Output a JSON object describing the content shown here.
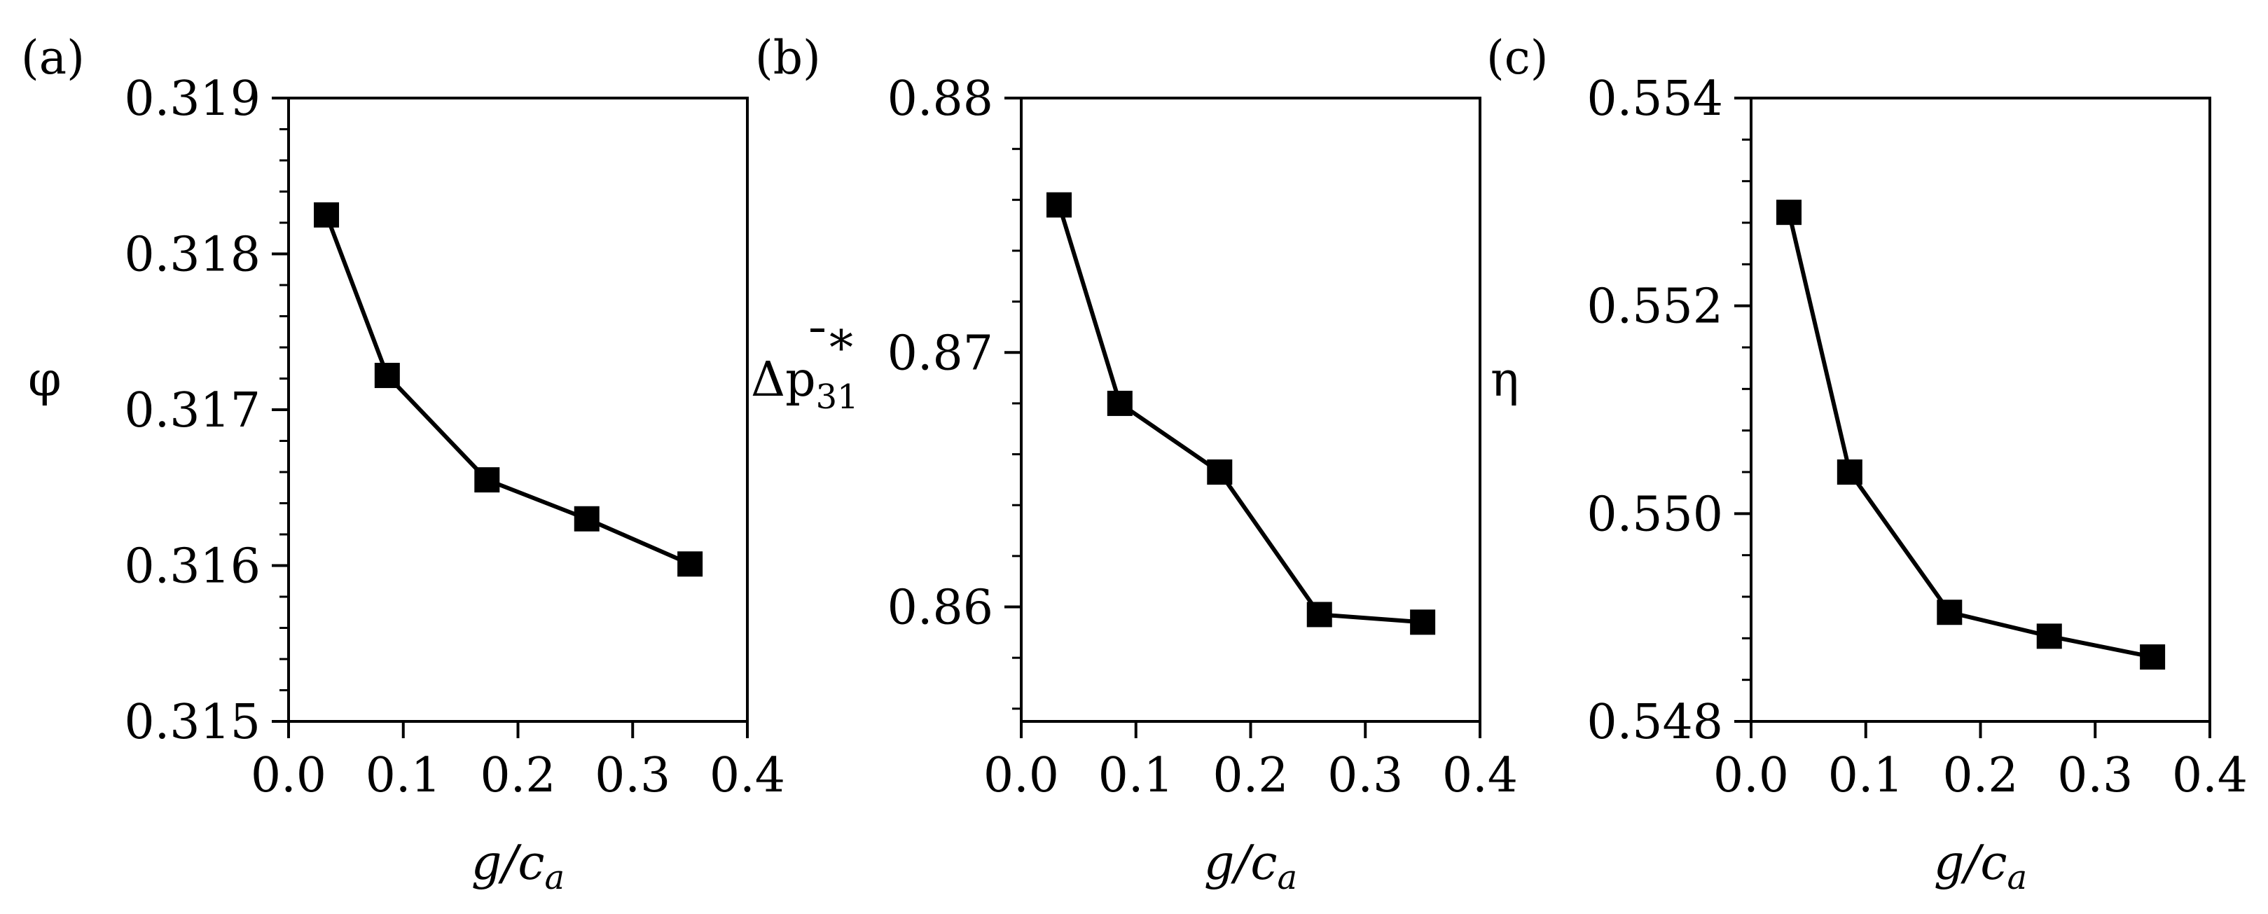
{
  "chart_data": [
    {
      "type": "line",
      "panel_label": "(a)",
      "title": "",
      "xlabel": "g/c",
      "xlabel_sub": "a",
      "ylabel": "φ",
      "ylabel_sup": "",
      "ylabel_sub": "",
      "x": [
        0.033,
        0.086,
        0.173,
        0.26,
        0.35
      ],
      "y": [
        0.31825,
        0.31722,
        0.31655,
        0.3163,
        0.31601
      ],
      "xlim": [
        0.0,
        0.4
      ],
      "ylim": [
        0.315,
        0.319
      ],
      "xticks": [
        0.0,
        0.1,
        0.2,
        0.3,
        0.4
      ],
      "xtick_labels": [
        "0.0",
        "0.1",
        "0.2",
        "0.3",
        "0.4"
      ],
      "yticks": [
        0.315,
        0.316,
        0.317,
        0.318,
        0.319
      ],
      "ytick_labels": [
        "0.315",
        "0.316",
        "0.317",
        "0.318",
        "0.319"
      ],
      "minor_y_step": 0.0002,
      "marker": "square",
      "color": "#000000"
    },
    {
      "type": "line",
      "panel_label": "(b)",
      "title": "",
      "xlabel": "g/c",
      "xlabel_sub": "a",
      "ylabel": "Δp",
      "ylabel_sup": "̄*",
      "ylabel_sub": "31",
      "x": [
        0.033,
        0.086,
        0.173,
        0.26,
        0.35
      ],
      "y": [
        0.8758,
        0.868,
        0.8653,
        0.8597,
        0.8594
      ],
      "xlim": [
        0.0,
        0.4
      ],
      "ylim": [
        0.8555,
        0.88
      ],
      "xticks": [
        0.0,
        0.1,
        0.2,
        0.3,
        0.4
      ],
      "xtick_labels": [
        "0.0",
        "0.1",
        "0.2",
        "0.3",
        "0.4"
      ],
      "yticks": [
        0.86,
        0.87,
        0.88
      ],
      "ytick_labels": [
        "0.86",
        "0.87",
        "0.88"
      ],
      "minor_y_step": 0.002,
      "marker": "square",
      "color": "#000000"
    },
    {
      "type": "line",
      "panel_label": "(c)",
      "title": "",
      "xlabel": "g/c",
      "xlabel_sub": "a",
      "ylabel": "η",
      "ylabel_sup": "",
      "ylabel_sub": "",
      "x": [
        0.033,
        0.086,
        0.173,
        0.26,
        0.35
      ],
      "y": [
        0.5529,
        0.5504,
        0.54905,
        0.54882,
        0.54862
      ],
      "xlim": [
        0.0,
        0.4
      ],
      "ylim": [
        0.548,
        0.554
      ],
      "xticks": [
        0.0,
        0.1,
        0.2,
        0.3,
        0.4
      ],
      "xtick_labels": [
        "0.0",
        "0.1",
        "0.2",
        "0.3",
        "0.4"
      ],
      "yticks": [
        0.548,
        0.55,
        0.552,
        0.554
      ],
      "ytick_labels": [
        "0.548",
        "0.550",
        "0.552",
        "0.554"
      ],
      "minor_y_step": 0.0004,
      "marker": "square",
      "color": "#000000"
    }
  ]
}
